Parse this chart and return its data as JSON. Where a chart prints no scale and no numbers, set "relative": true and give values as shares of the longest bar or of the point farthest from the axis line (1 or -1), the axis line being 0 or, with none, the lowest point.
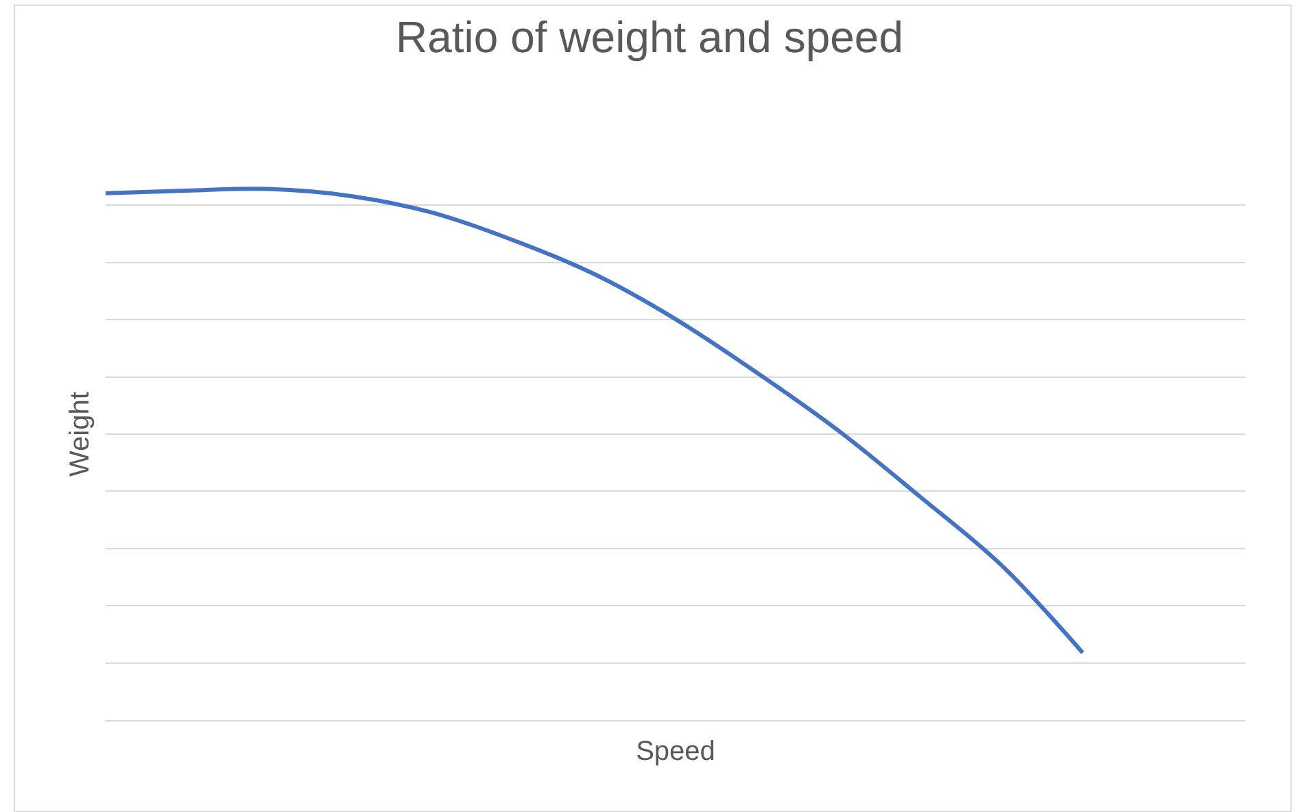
{
  "chart_data": {
    "type": "line",
    "title": "Ratio of weight and speed",
    "xlabel": "Speed",
    "ylabel": "Weight",
    "relative": true,
    "grid": "y",
    "categories": [
      null,
      null,
      null,
      null,
      null,
      null,
      null,
      null,
      null,
      null,
      null,
      null,
      null,
      null,
      null
    ],
    "series": [
      {
        "color": "#4472c4",
        "values": [
          0.992,
          0.997,
          1,
          0.987,
          0.956,
          0.904,
          0.84,
          0.755,
          0.654,
          0.545,
          0.421,
          0.292,
          0.127,
          null,
          null
        ]
      }
    ]
  }
}
